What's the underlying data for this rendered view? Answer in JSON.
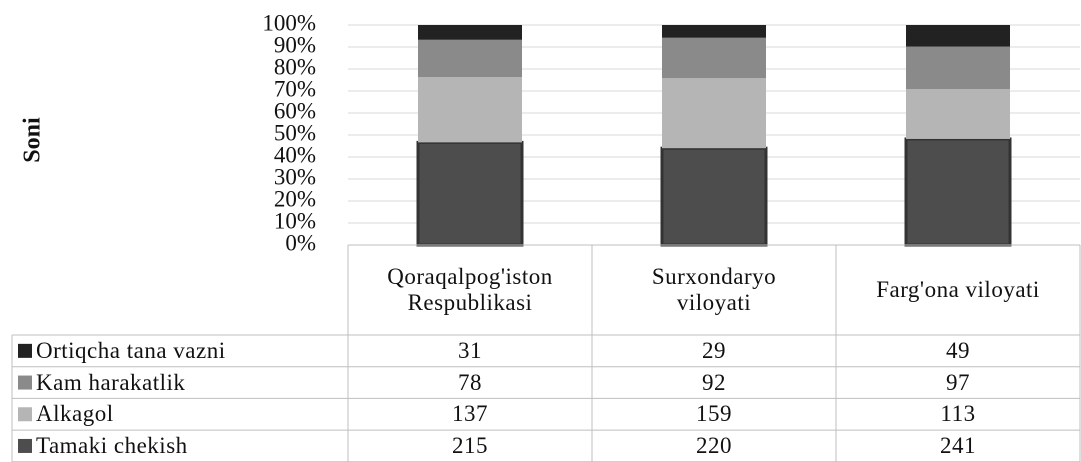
{
  "chart_data": {
    "type": "bar",
    "stacking": "percent",
    "y_label": "Soni",
    "categories": [
      "Qoraqalpog'iston Respublikasi",
      "Surxondaryo viloyati",
      "Farg'ona viloyati"
    ],
    "series": [
      {
        "name": "Tamaki chekish",
        "color": "#4d4d4d",
        "values": [
          215,
          220,
          241
        ]
      },
      {
        "name": "Alkagol",
        "color": "#b5b5b5",
        "values": [
          137,
          159,
          113
        ]
      },
      {
        "name": "Kam harakatlik",
        "color": "#8a8a8a",
        "values": [
          78,
          92,
          97
        ]
      },
      {
        "name": "Ortiqcha tana vazni",
        "color": "#222222",
        "values": [
          31,
          29,
          49
        ]
      }
    ],
    "ylim": [
      0,
      100
    ],
    "yticks": [
      {
        "value": 0,
        "label": "0%"
      },
      {
        "value": 10,
        "label": "10%"
      },
      {
        "value": 20,
        "label": "20%"
      },
      {
        "value": 30,
        "label": "30%"
      },
      {
        "value": 40,
        "label": "40%"
      },
      {
        "value": 50,
        "label": "50%"
      },
      {
        "value": 60,
        "label": "60%"
      },
      {
        "value": 70,
        "label": "70%"
      },
      {
        "value": 80,
        "label": "80%"
      },
      {
        "value": 90,
        "label": "90%"
      },
      {
        "value": 100,
        "label": "100%"
      }
    ],
    "grid": true,
    "data_table": true
  }
}
